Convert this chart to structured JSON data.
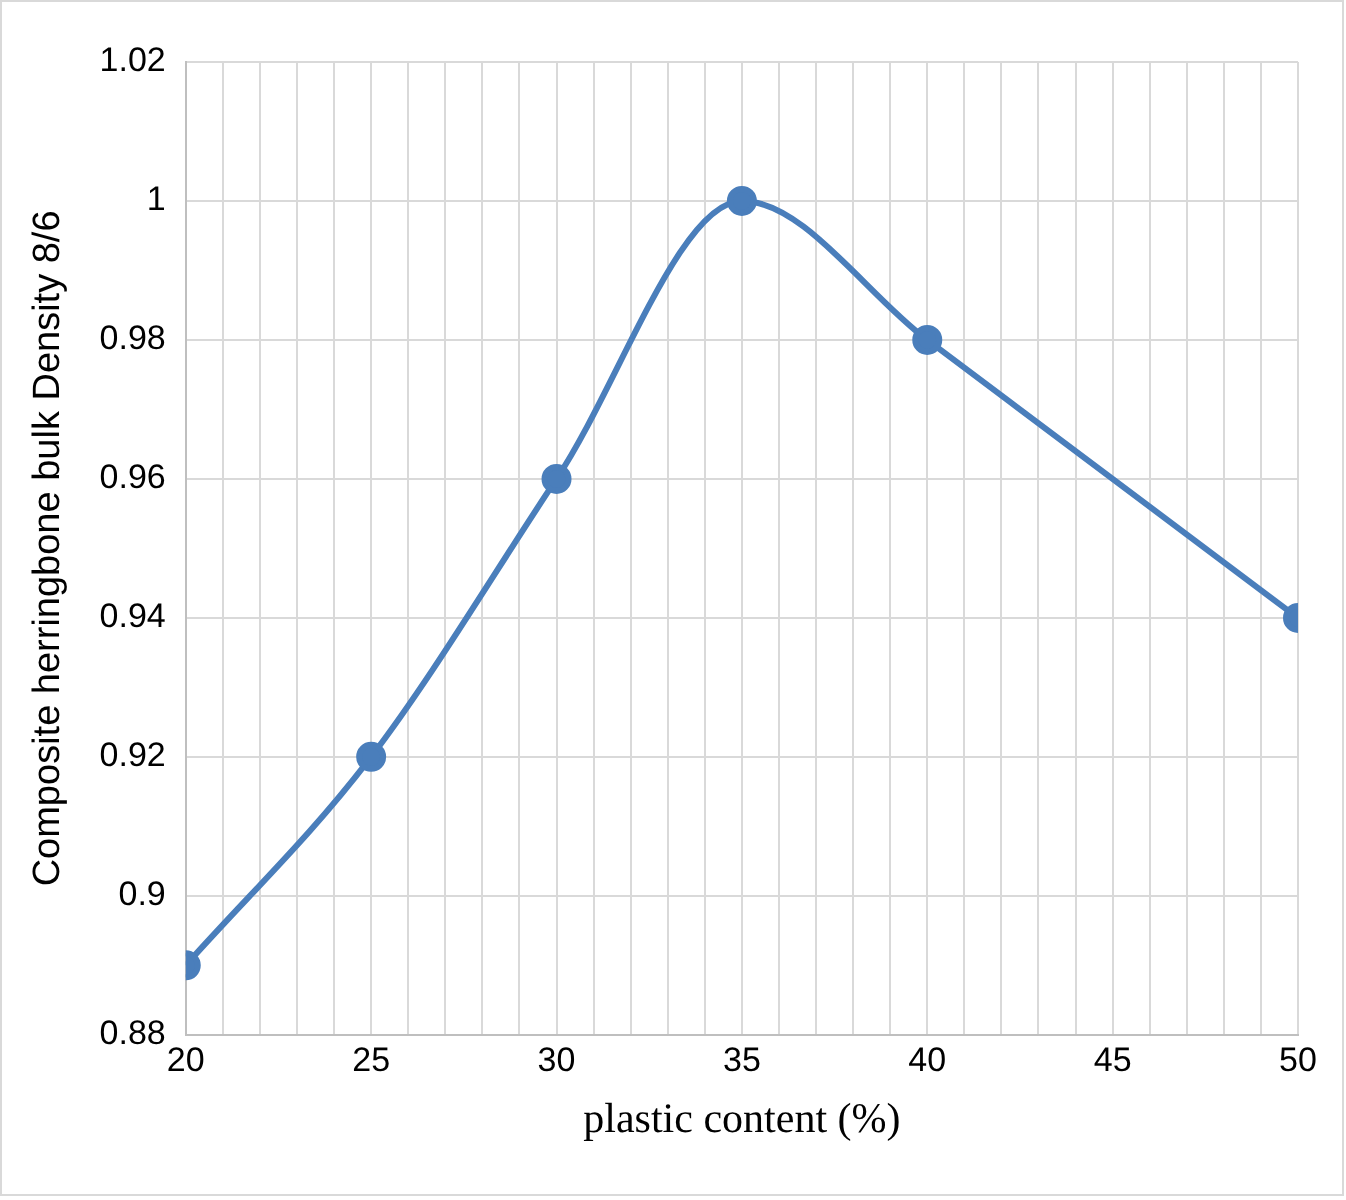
{
  "chart_data": {
    "type": "line",
    "xlabel": "plastic content (%)",
    "ylabel": "Composite herringbone bulk Density 8/6",
    "x": [
      20,
      25,
      30,
      35,
      40,
      50
    ],
    "series": [
      {
        "color": "#4a7ebb",
        "values": [
          0.89,
          0.92,
          0.96,
          1,
          0.98,
          0.94
        ]
      }
    ],
    "xlim": [
      20,
      50
    ],
    "xticks": [
      20,
      {
        "value": 21,
        "label": null
      },
      {
        "value": 22,
        "label": null
      },
      {
        "value": 23,
        "label": null
      },
      {
        "value": 24,
        "label": null
      },
      25,
      {
        "value": 26,
        "label": null
      },
      {
        "value": 27,
        "label": null
      },
      {
        "value": 28,
        "label": null
      },
      {
        "value": 29,
        "label": null
      },
      30,
      {
        "value": 31,
        "label": null
      },
      {
        "value": 32,
        "label": null
      },
      {
        "value": 33,
        "label": null
      },
      {
        "value": 34,
        "label": null
      },
      35,
      {
        "value": 36,
        "label": null
      },
      {
        "value": 37,
        "label": null
      },
      {
        "value": 38,
        "label": null
      },
      {
        "value": 39,
        "label": null
      },
      40,
      {
        "value": 41,
        "label": null
      },
      {
        "value": 42,
        "label": null
      },
      {
        "value": 43,
        "label": null
      },
      {
        "value": 44,
        "label": null
      },
      45,
      {
        "value": 46,
        "label": null
      },
      {
        "value": 47,
        "label": null
      },
      {
        "value": 48,
        "label": null
      },
      {
        "value": 49,
        "label": null
      },
      50
    ],
    "ylim": [
      0.88,
      1.02
    ],
    "yticks": [
      0.88,
      0.9,
      0.92,
      0.94,
      0.96,
      0.98,
      1,
      1.02
    ],
    "grid": true,
    "legend": false,
    "marker": "circle",
    "line_style": "solid"
  }
}
